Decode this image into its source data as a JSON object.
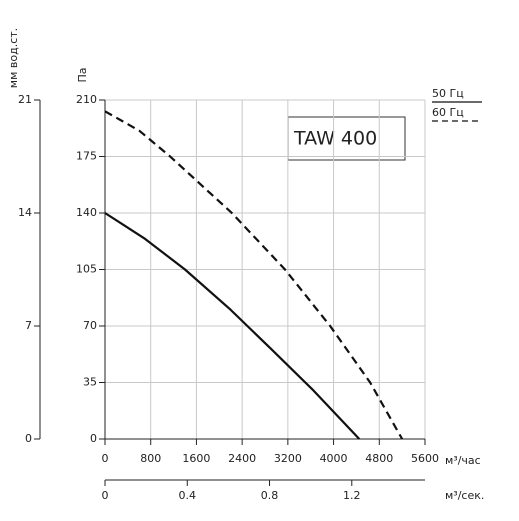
{
  "chart_data": {
    "type": "line",
    "title": "TAW 400",
    "y_label": "Па",
    "y2_label": "мм вод.ст.",
    "x_label": "м³/час",
    "x2_label": "м³/сек.",
    "xlim": [
      0,
      5600
    ],
    "xticks": [
      0,
      800,
      1600,
      2400,
      3200,
      4000,
      4800,
      5600
    ],
    "ylim": [
      0,
      210
    ],
    "yticks": [
      0,
      35,
      70,
      105,
      140,
      175,
      210
    ],
    "y2lim": [
      0,
      21
    ],
    "y2ticks": [
      0,
      7,
      14,
      21
    ],
    "x2lim": [
      0,
      1.556
    ],
    "x2ticks": [
      0,
      0.4,
      0.8,
      1.2
    ],
    "grid": true,
    "series": [
      {
        "name": "50 Гц",
        "color": "#111111",
        "dash": false,
        "x": [
          0,
          700,
          1400,
          2200,
          2900,
          3650,
          4450
        ],
        "values": [
          140,
          124,
          105,
          80,
          56,
          30,
          0
        ]
      },
      {
        "name": "60 Гц",
        "color": "#111111",
        "dash": true,
        "x": [
          0,
          600,
          1140,
          2220,
          3150,
          3940,
          4640,
          5200
        ],
        "values": [
          203,
          191,
          175,
          140,
          105,
          70,
          35,
          0
        ]
      }
    ]
  }
}
